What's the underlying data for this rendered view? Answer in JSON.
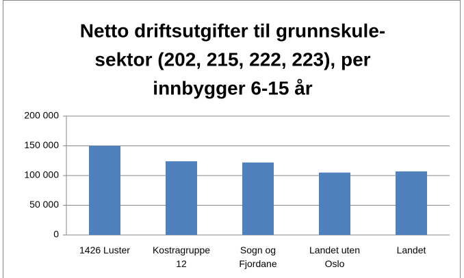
{
  "chart_data": {
    "type": "bar",
    "title": [
      "Netto driftsutgifter til grunnskule-",
      "sektor (202, 215, 222, 223), per",
      "innbygger 6-15 år"
    ],
    "categories": [
      "1426 Luster",
      "Kostragruppe 12",
      "Sogn og Fjordane",
      "Landet uten Oslo",
      "Landet"
    ],
    "values": [
      150000,
      124000,
      122000,
      105000,
      107000
    ],
    "color": "#4f81bd",
    "ylim": [
      0,
      200000
    ],
    "yticks": [
      0,
      {
        "value": 50000,
        "label": "50 000"
      },
      {
        "value": 100000,
        "label": "100 000"
      },
      {
        "value": 150000,
        "label": "150 000"
      },
      {
        "value": 200000,
        "label": "200 000"
      }
    ],
    "grid": true
  }
}
